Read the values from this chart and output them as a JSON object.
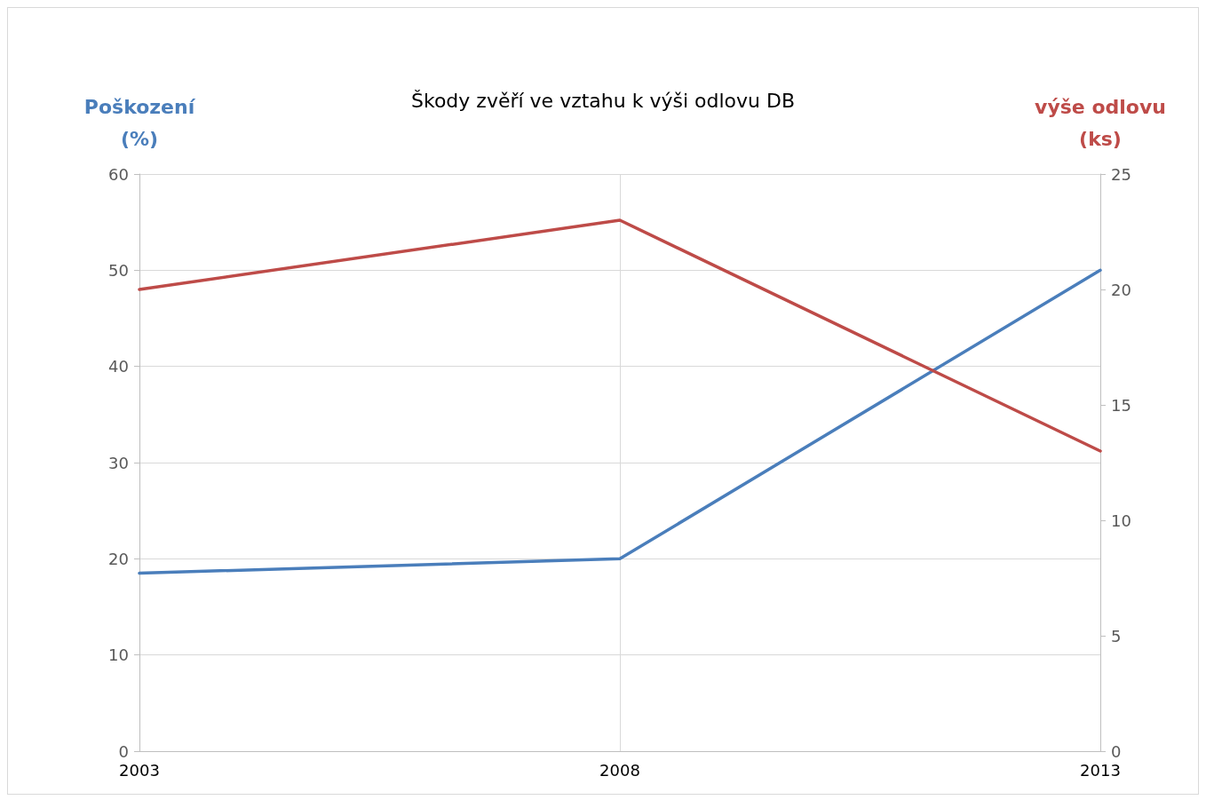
{
  "chart_data": {
    "type": "line",
    "title": "Škody zvěří ve vztahu k výši odlovu DB",
    "ylabel": "Poškození\n(%)",
    "y2label": "výše odlovu\n(ks)",
    "categories": [
      "2003",
      "2008",
      "2013"
    ],
    "series": [
      {
        "color": "#4a7ebb",
        "values": [
          18.5,
          20,
          50
        ]
      },
      {
        "color": "#be4b48",
        "values": [
          20,
          23,
          13
        ],
        "axis": "y2"
      }
    ],
    "ylim": [
      0,
      60
    ],
    "yticks": [
      0,
      10,
      20,
      30,
      40,
      50,
      60
    ],
    "y2lim": [
      0,
      25
    ],
    "y2ticks": [
      0,
      5,
      10,
      15,
      20,
      25
    ],
    "grid": true,
    "marker": "none",
    "line_style": "solid"
  }
}
